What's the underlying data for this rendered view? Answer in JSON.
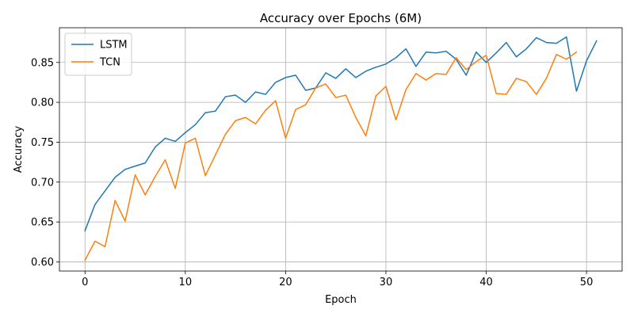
{
  "chart_data": {
    "type": "line",
    "title": "Accuracy over Epochs (6M)",
    "xlabel": "Epoch",
    "ylabel": "Accuracy",
    "xlim": [
      -2.55,
      53.55
    ],
    "ylim": [
      0.5885,
      0.8935
    ],
    "xticks": [
      0,
      10,
      20,
      30,
      40,
      50
    ],
    "yticks": [
      0.6,
      0.65,
      0.7,
      0.75,
      0.8,
      0.85
    ],
    "xtick_labels": [
      "0",
      "10",
      "20",
      "30",
      "40",
      "50"
    ],
    "ytick_labels": [
      "0.60",
      "0.65",
      "0.70",
      "0.75",
      "0.80",
      "0.85"
    ],
    "grid": true,
    "legend_position": "top-left",
    "series": [
      {
        "name": "LSTM",
        "color": "#1f77b4",
        "x": [
          0,
          1,
          2,
          3,
          4,
          5,
          6,
          7,
          8,
          9,
          10,
          11,
          12,
          13,
          14,
          15,
          16,
          17,
          18,
          19,
          20,
          21,
          22,
          23,
          24,
          25,
          26,
          27,
          28,
          29,
          30,
          31,
          32,
          33,
          34,
          35,
          36,
          37,
          38,
          39,
          40,
          41,
          42,
          43,
          44,
          45,
          46,
          47,
          48,
          49,
          50,
          51
        ],
        "values": [
          0.639,
          0.672,
          0.689,
          0.706,
          0.716,
          0.72,
          0.724,
          0.744,
          0.755,
          0.751,
          0.762,
          0.772,
          0.787,
          0.789,
          0.807,
          0.809,
          0.8,
          0.813,
          0.81,
          0.825,
          0.831,
          0.834,
          0.815,
          0.818,
          0.837,
          0.83,
          0.842,
          0.831,
          0.839,
          0.844,
          0.848,
          0.856,
          0.867,
          0.845,
          0.863,
          0.862,
          0.864,
          0.854,
          0.834,
          0.863,
          0.85,
          0.862,
          0.875,
          0.857,
          0.867,
          0.881,
          0.875,
          0.874,
          0.882,
          0.814,
          0.852,
          0.877
        ]
      },
      {
        "name": "TCN",
        "color": "#ff7f0e",
        "x": [
          0,
          1,
          2,
          3,
          4,
          5,
          6,
          7,
          8,
          9,
          10,
          11,
          12,
          13,
          14,
          15,
          16,
          17,
          18,
          19,
          20,
          21,
          22,
          23,
          24,
          25,
          26,
          27,
          28,
          29,
          30,
          31,
          32,
          33,
          34,
          35,
          36,
          37,
          38,
          39,
          40,
          41,
          42,
          43,
          44,
          45,
          46,
          47,
          48,
          49
        ],
        "values": [
          0.602,
          0.626,
          0.619,
          0.677,
          0.651,
          0.709,
          0.684,
          0.707,
          0.728,
          0.692,
          0.749,
          0.755,
          0.708,
          0.734,
          0.76,
          0.777,
          0.781,
          0.773,
          0.79,
          0.802,
          0.755,
          0.791,
          0.797,
          0.818,
          0.823,
          0.806,
          0.809,
          0.781,
          0.758,
          0.808,
          0.82,
          0.778,
          0.816,
          0.836,
          0.828,
          0.836,
          0.835,
          0.856,
          0.841,
          0.851,
          0.859,
          0.811,
          0.81,
          0.83,
          0.826,
          0.81,
          0.83,
          0.86,
          0.854,
          0.863
        ]
      }
    ]
  }
}
